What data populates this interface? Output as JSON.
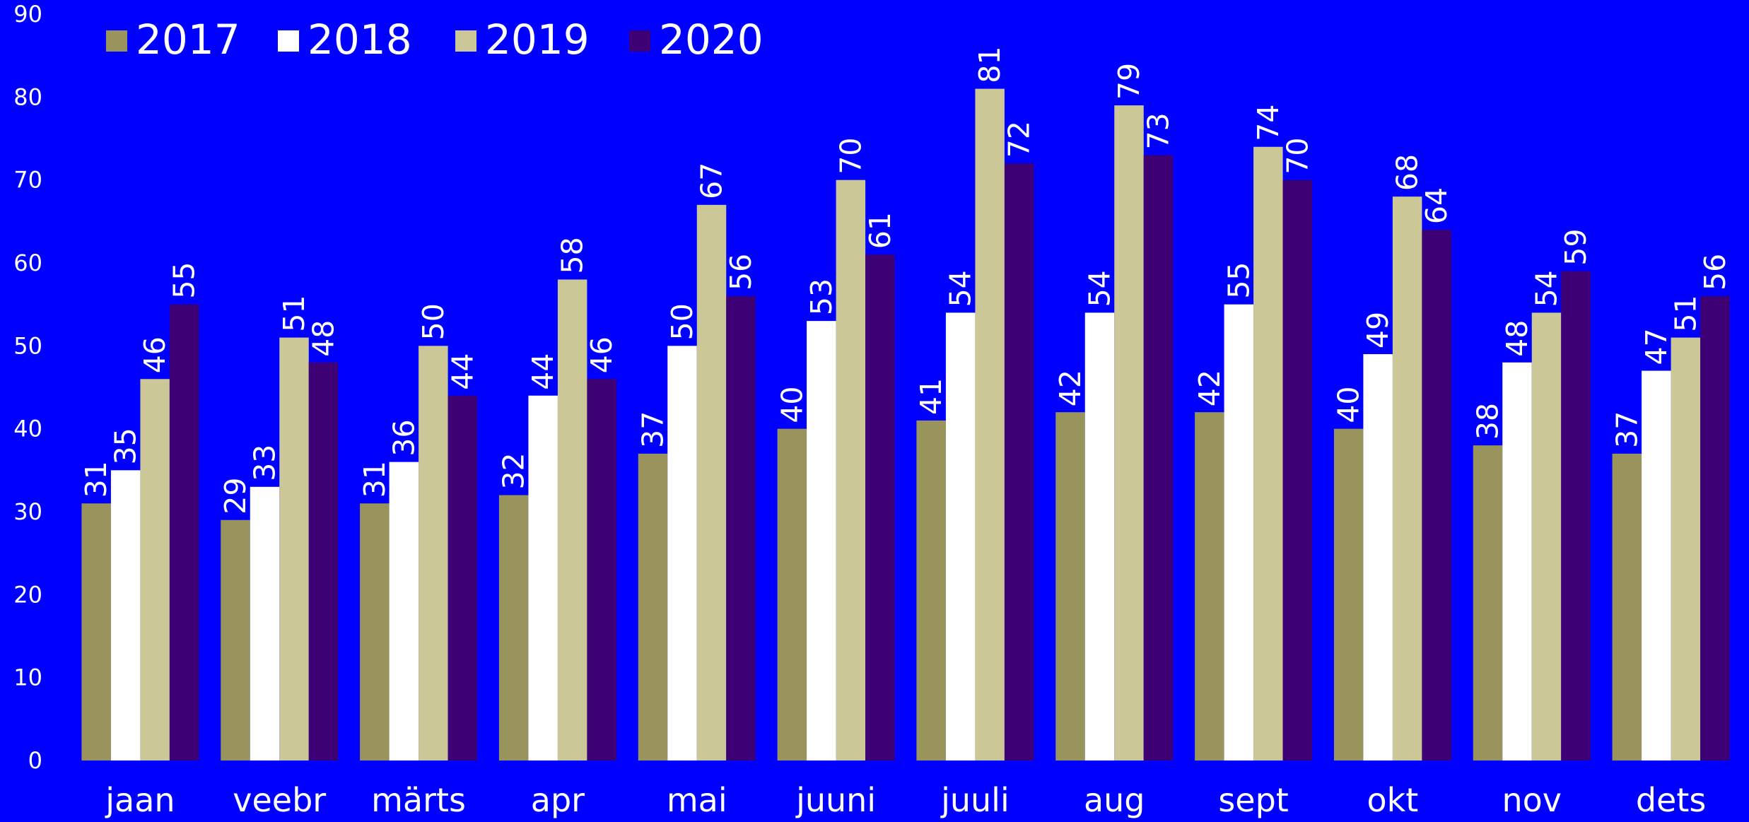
{
  "chart_data": {
    "type": "bar",
    "categories": [
      "jaan",
      "veebr",
      "märts",
      "apr",
      "mai",
      "juuni",
      "juuli",
      "aug",
      "sept",
      "okt",
      "nov",
      "dets"
    ],
    "series": [
      {
        "name": "2017",
        "color": "#99945c",
        "values": [
          31,
          29,
          31,
          32,
          37,
          40,
          41,
          42,
          42,
          40,
          38,
          37
        ]
      },
      {
        "name": "2018",
        "color": "#ffffff",
        "values": [
          35,
          33,
          36,
          44,
          50,
          53,
          54,
          54,
          55,
          49,
          48,
          47
        ]
      },
      {
        "name": "2019",
        "color": "#cbc797",
        "values": [
          46,
          51,
          50,
          58,
          67,
          70,
          81,
          79,
          74,
          68,
          54,
          51
        ]
      },
      {
        "name": "2020",
        "color": "#3d0075",
        "values": [
          55,
          48,
          44,
          46,
          56,
          61,
          72,
          73,
          70,
          64,
          59,
          56
        ]
      }
    ],
    "ylim": [
      0,
      90
    ],
    "yticks": [
      "0",
      "10",
      "20",
      "30",
      "40",
      "50",
      "60",
      "70",
      "80",
      "90"
    ],
    "title": "",
    "xlabel": "",
    "ylabel": "",
    "legend_position": "top-left",
    "grid": false,
    "data_labels": true,
    "background_color": "#0000ff",
    "text_color": "#ffffff"
  }
}
